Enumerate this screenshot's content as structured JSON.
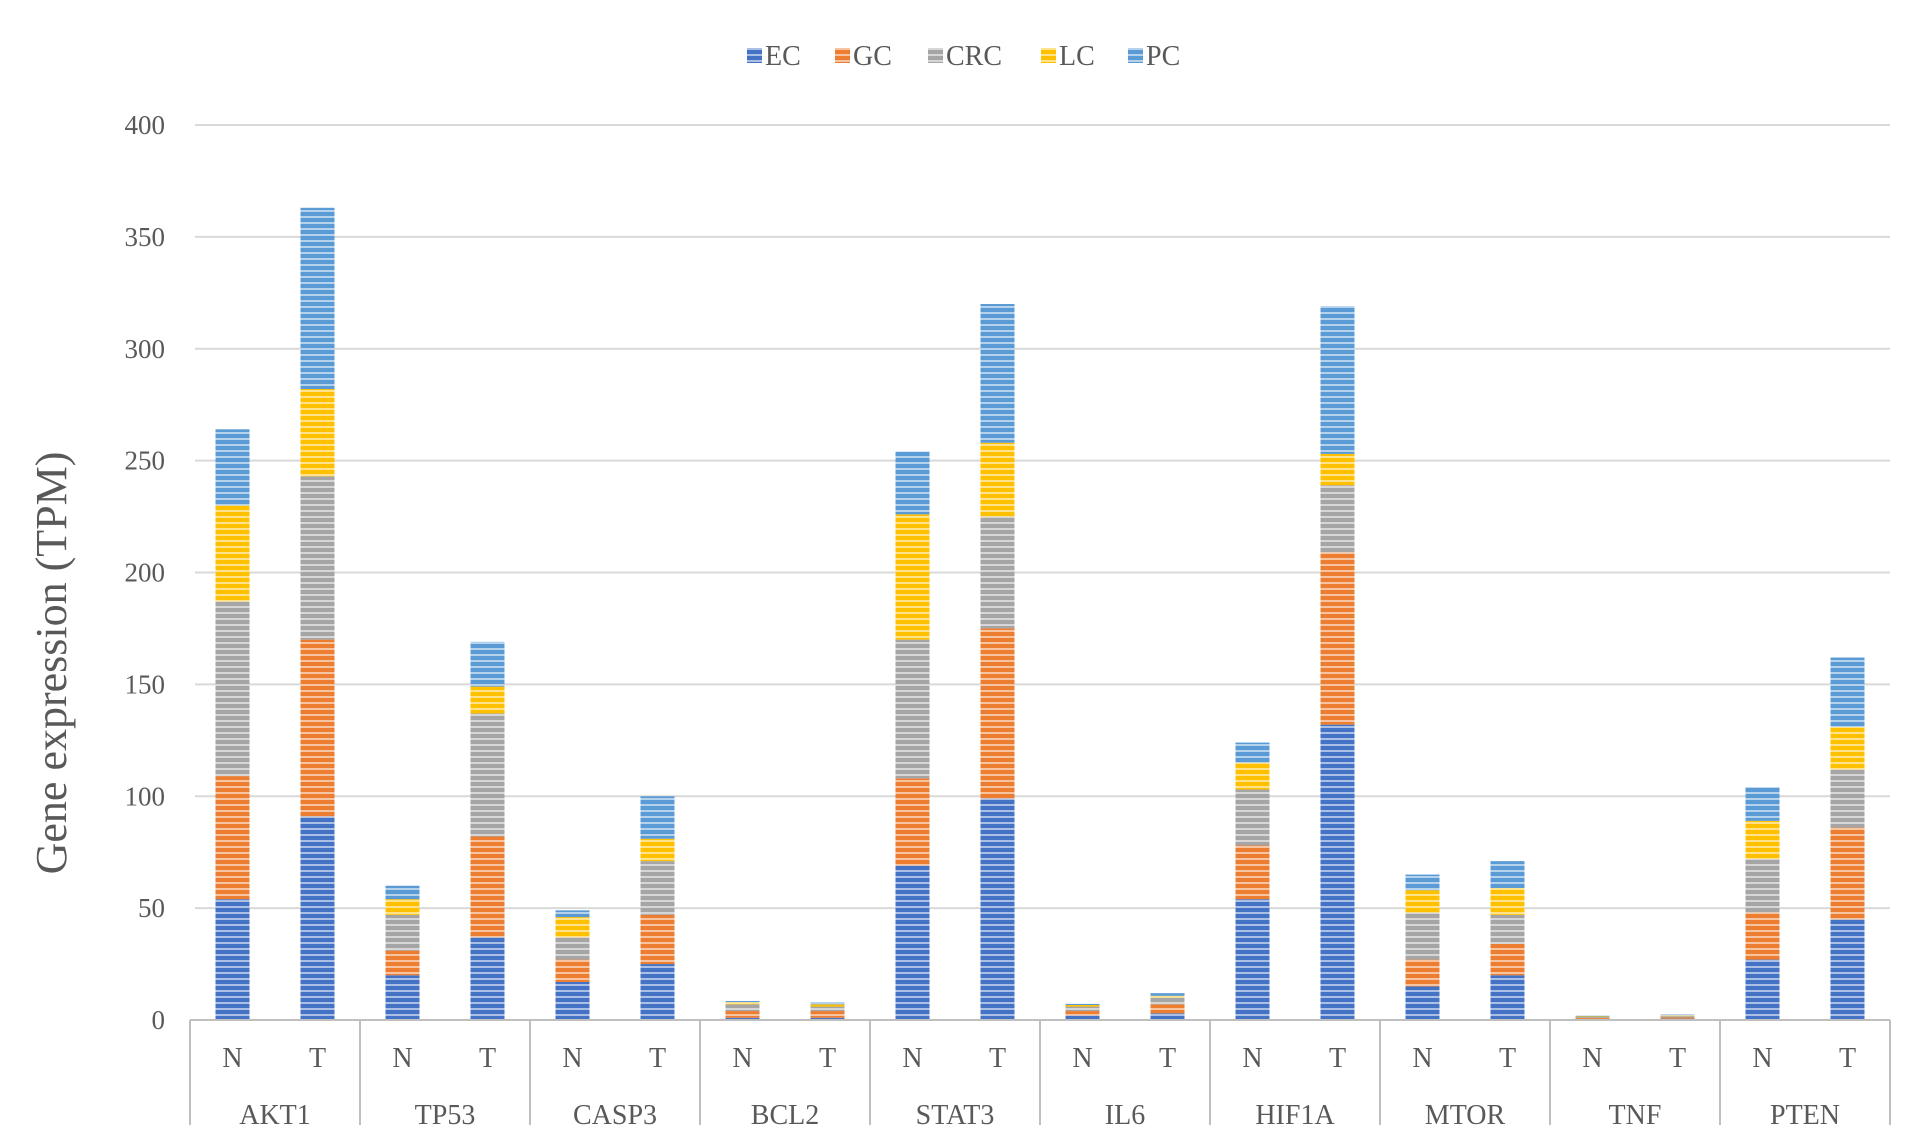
{
  "chart_data": {
    "type": "bar",
    "stacked": true,
    "title": "",
    "ylabel": "Gene expression (TPM)",
    "xlabel": "",
    "ylim": [
      0,
      400
    ],
    "yticks": [
      0,
      50,
      100,
      150,
      200,
      250,
      300,
      350,
      400
    ],
    "grid": true,
    "legend_position": "top",
    "groups": [
      "AKT1",
      "TP53",
      "CASP3",
      "BCL2",
      "STAT3",
      "IL6",
      "HIF1A",
      "MTOR",
      "TNF",
      "PTEN"
    ],
    "subcategories": [
      "N",
      "T"
    ],
    "series": [
      {
        "name": "EC",
        "color": "#4472C4",
        "values": [
          54,
          91,
          20,
          37,
          17,
          25,
          1,
          1,
          69,
          99,
          2,
          3,
          54,
          132,
          15,
          20,
          0.5,
          0.6,
          27,
          45
        ]
      },
      {
        "name": "GC",
        "color": "#ED7D31",
        "values": [
          55,
          79,
          11,
          45,
          10,
          22,
          3,
          3,
          39,
          76,
          2,
          4,
          24,
          77,
          12,
          14,
          0.4,
          0.5,
          21,
          41
        ]
      },
      {
        "name": "CRC",
        "color": "#A5A5A5",
        "values": [
          78,
          73,
          16,
          55,
          10,
          24,
          3,
          2,
          62,
          50,
          2,
          3,
          25,
          30,
          21,
          13,
          0.4,
          0.6,
          24,
          26
        ]
      },
      {
        "name": "LC",
        "color": "#FFC000",
        "values": [
          43,
          39,
          7,
          12,
          9,
          10,
          1,
          1,
          56,
          33,
          0.7,
          0.8,
          12,
          14,
          10,
          12,
          0.3,
          0.4,
          17,
          19
        ]
      },
      {
        "name": "PC",
        "color": "#5B9BD5",
        "values": [
          34,
          81,
          6,
          20,
          3,
          19,
          0.5,
          1,
          28,
          62,
          0.5,
          1.2,
          9,
          66,
          7,
          12,
          0.4,
          0.5,
          15,
          31
        ]
      }
    ]
  }
}
